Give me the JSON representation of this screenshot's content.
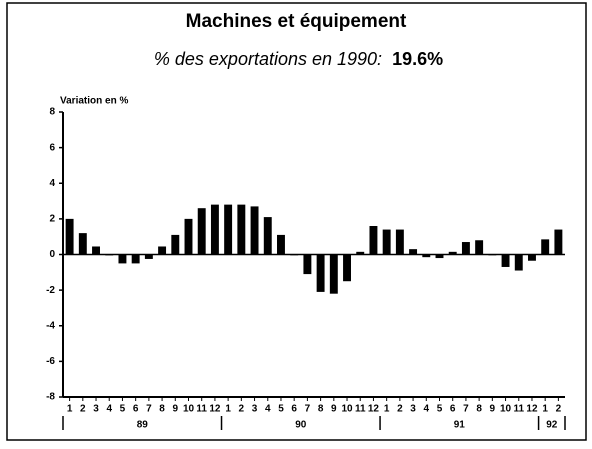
{
  "chart_data": {
    "type": "bar",
    "title": "Machines et équipement",
    "subtitle": "% des exportations en 1990:",
    "subtitle_value": "19.6%",
    "y_label": "Variation en %",
    "categories": [
      "1",
      "2",
      "3",
      "4",
      "5",
      "6",
      "7",
      "8",
      "9",
      "10",
      "11",
      "12",
      "1",
      "2",
      "3",
      "4",
      "5",
      "6",
      "7",
      "8",
      "9",
      "10",
      "11",
      "12",
      "1",
      "2",
      "3",
      "4",
      "5",
      "6",
      "7",
      "8",
      "9",
      "10",
      "11",
      "12",
      "1",
      "2"
    ],
    "years": [
      "89",
      "90",
      "91",
      "92"
    ],
    "values": [
      2.0,
      1.2,
      0.45,
      -0.05,
      -0.5,
      -0.5,
      -0.25,
      0.45,
      1.1,
      2.0,
      2.6,
      2.8,
      2.8,
      2.8,
      2.7,
      2.1,
      1.1,
      0.0,
      -1.1,
      -2.1,
      -2.2,
      -1.5,
      0.15,
      1.6,
      1.4,
      1.4,
      0.3,
      -0.15,
      -0.2,
      0.15,
      0.7,
      0.8,
      0.0,
      -0.7,
      -0.9,
      -0.35,
      0.85,
      1.4
    ],
    "color": "#000000",
    "ylim": [
      -8,
      8
    ],
    "yticks": [
      -8,
      -6,
      -4,
      -2,
      0,
      2,
      4,
      6,
      8
    ],
    "grid": false
  }
}
